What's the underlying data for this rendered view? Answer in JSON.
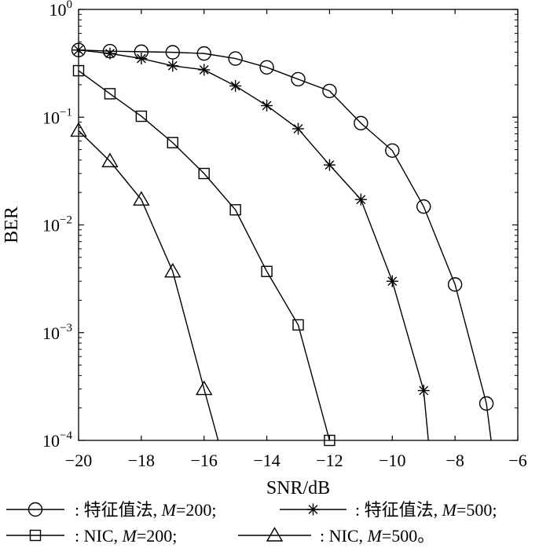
{
  "chart_data": {
    "type": "line",
    "xlabel": "SNR/dB",
    "ylabel": "BER",
    "xlim": [
      -20,
      -6
    ],
    "ylim": [
      0.0001,
      1
    ],
    "yscale": "log",
    "grid": false,
    "legend_position": "bottom",
    "x_ticks": [
      -20,
      -18,
      -16,
      -14,
      -12,
      -10,
      -8,
      -6
    ],
    "x_tick_labels": [
      "−20",
      "−18",
      "−16",
      "−14",
      "−12",
      "−10",
      "−8",
      "−6"
    ],
    "y_ticks": [
      1,
      0.1,
      0.01,
      0.001,
      0.0001
    ],
    "y_tick_labels": [
      {
        "base": "10",
        "exp": "0"
      },
      {
        "base": "10",
        "exp": "-1"
      },
      {
        "base": "10",
        "exp": "-2"
      },
      {
        "base": "10",
        "exp": "-3"
      },
      {
        "base": "10",
        "exp": "-4"
      }
    ],
    "series": [
      {
        "marker": "circle",
        "legend_label": ": 特征值法, ",
        "legend_param": "M",
        "legend_value": "=200;",
        "x": [
          -20,
          -19,
          -18,
          -17,
          -16,
          -15,
          -14,
          -13,
          -12,
          -11,
          -10,
          -9,
          -8,
          -7,
          -6.85
        ],
        "y": [
          0.42,
          0.41,
          0.405,
          0.4,
          0.39,
          0.35,
          0.29,
          0.225,
          0.175,
          0.088,
          0.049,
          0.0148,
          0.0028,
          0.00022,
          0.0001
        ],
        "marker_count": 14
      },
      {
        "marker": "star",
        "legend_label": ": 特征值法, ",
        "legend_param": "M",
        "legend_value": "=500;",
        "x": [
          -20,
          -19,
          -18,
          -17,
          -16,
          -15,
          -14,
          -13,
          -12,
          -11,
          -10,
          -9,
          -8.85
        ],
        "y": [
          0.42,
          0.39,
          0.35,
          0.3,
          0.275,
          0.195,
          0.128,
          0.078,
          0.036,
          0.0172,
          0.003,
          0.00029,
          0.0001
        ],
        "marker_count": 12
      },
      {
        "marker": "square",
        "legend_label": ": NIC, ",
        "legend_param": "M",
        "legend_value": "=200;",
        "x": [
          -20,
          -19,
          -18,
          -17,
          -16,
          -15,
          -14,
          -13,
          -12
        ],
        "y": [
          0.27,
          0.165,
          0.102,
          0.058,
          0.03,
          0.0138,
          0.0037,
          0.00118,
          0.0001
        ],
        "marker_count": 9
      },
      {
        "marker": "triangle",
        "legend_label": ": NIC, ",
        "legend_param": "M",
        "legend_value": "=500。",
        "x": [
          -20,
          -19,
          -18,
          -17,
          -16,
          -15.55
        ],
        "y": [
          0.075,
          0.039,
          0.0172,
          0.0037,
          0.0003,
          0.0001
        ],
        "marker_count": 5
      }
    ]
  }
}
